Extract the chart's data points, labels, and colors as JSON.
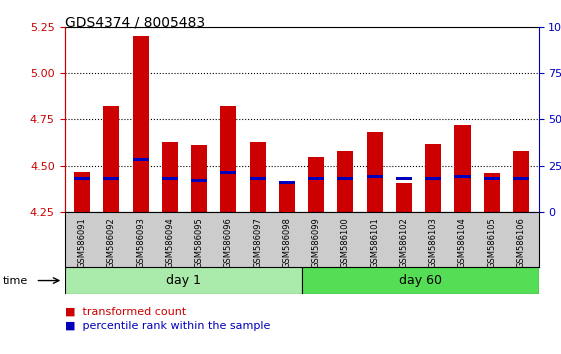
{
  "title": "GDS4374 / 8005483",
  "samples": [
    "GSM586091",
    "GSM586092",
    "GSM586093",
    "GSM586094",
    "GSM586095",
    "GSM586096",
    "GSM586097",
    "GSM586098",
    "GSM586099",
    "GSM586100",
    "GSM586101",
    "GSM586102",
    "GSM586103",
    "GSM586104",
    "GSM586105",
    "GSM586106"
  ],
  "bar_tops": [
    4.47,
    4.82,
    5.2,
    4.63,
    4.61,
    4.82,
    4.63,
    4.42,
    4.55,
    4.58,
    4.68,
    4.41,
    4.62,
    4.72,
    4.46,
    4.58
  ],
  "blue_positions": [
    4.425,
    4.425,
    4.525,
    4.425,
    4.415,
    4.455,
    4.425,
    4.405,
    4.425,
    4.425,
    4.435,
    4.425,
    4.425,
    4.435,
    4.425,
    4.425
  ],
  "blue_heights": [
    0.016,
    0.016,
    0.016,
    0.016,
    0.016,
    0.016,
    0.016,
    0.016,
    0.016,
    0.016,
    0.016,
    0.016,
    0.016,
    0.016,
    0.016,
    0.016
  ],
  "bar_color": "#cc0000",
  "blue_color": "#0000bb",
  "ylim_left": [
    4.25,
    5.25
  ],
  "ylim_right": [
    0,
    100
  ],
  "yticks_left": [
    4.25,
    4.5,
    4.75,
    5.0,
    5.25
  ],
  "yticks_right": [
    0,
    25,
    50,
    75,
    100
  ],
  "ytick_labels_right": [
    "0",
    "25",
    "50",
    "75",
    "100%"
  ],
  "day1_color": "#aaeaaa",
  "day60_color": "#55dd55",
  "time_label": "time",
  "legend_red_label": "transformed count",
  "legend_blue_label": "percentile rank within the sample",
  "bar_width": 0.55,
  "axis_label_color_left": "#cc0000",
  "axis_label_color_right": "#0000bb",
  "title_fontsize": 10,
  "background_color": "#ffffff",
  "plot_bg": "#ffffff",
  "tick_label_bg": "#cccccc",
  "sample_label_fontsize": 6.0,
  "legend_fontsize": 8
}
